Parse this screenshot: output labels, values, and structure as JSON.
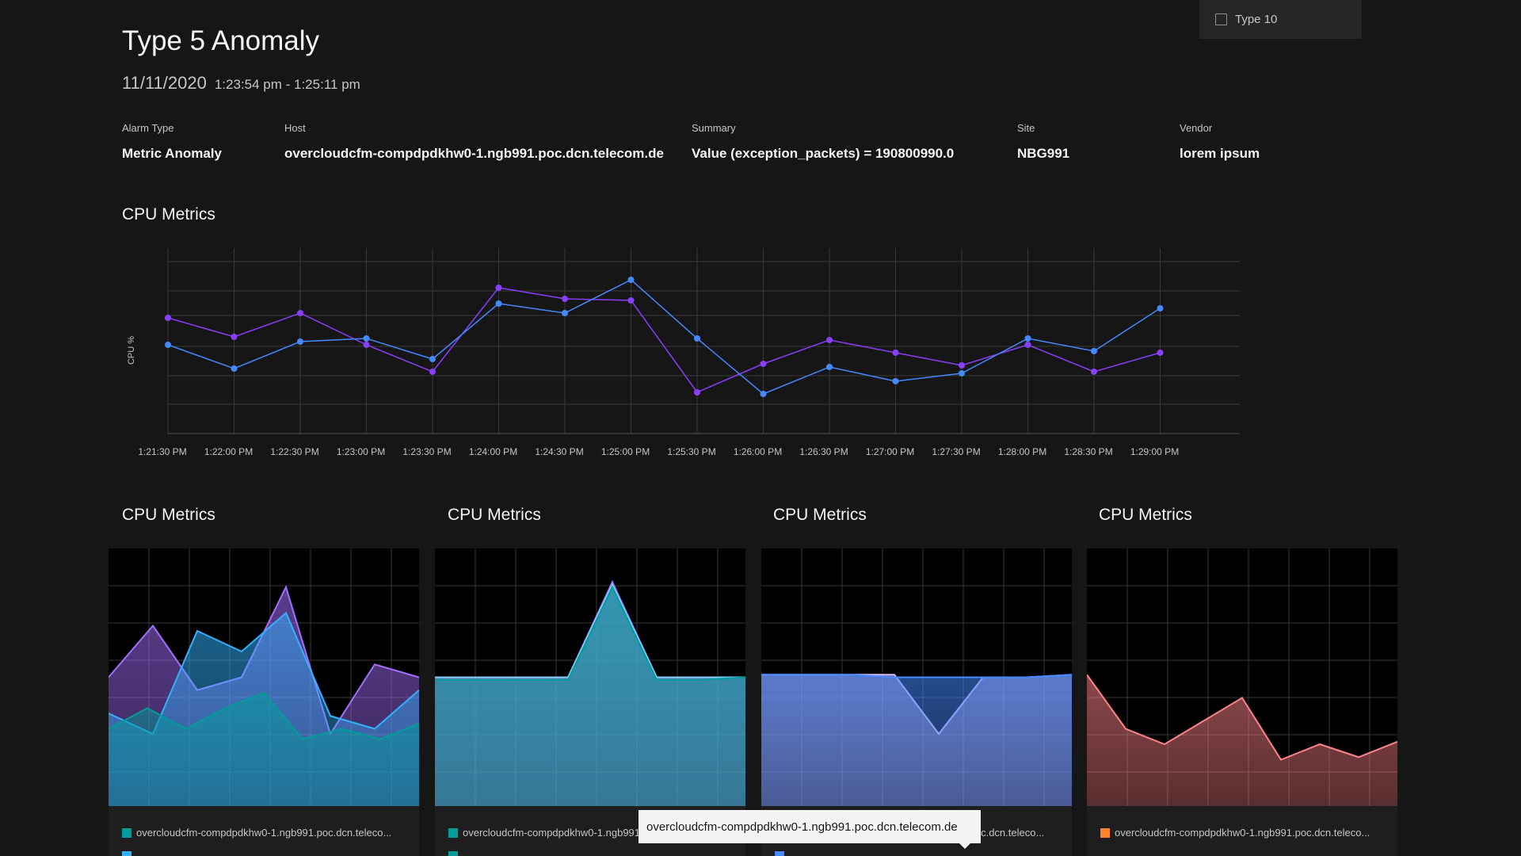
{
  "header": {
    "title": "Type 5 Anomaly",
    "date": "11/11/2020",
    "time_range": "1:23:54 pm - 1:25:11 pm"
  },
  "filter": {
    "label": "Type 10"
  },
  "meta": [
    {
      "label": "Alarm Type",
      "value": "Metric Anomaly"
    },
    {
      "label": "Host",
      "value": "overcloudcfm-compdpdkhw0-1.ngb991.poc.dcn.telecom.de"
    },
    {
      "label": "Summary",
      "value": "Value (exception_packets) = 190800990.0"
    },
    {
      "label": "Site",
      "value": "NBG991"
    },
    {
      "label": "Vendor",
      "value": "lorem ipsum"
    }
  ],
  "main_chart_title": "CPU Metrics",
  "chart_data": [
    {
      "type": "line",
      "ylabel": "CPU %",
      "x": [
        "1:21:30 PM",
        "1:22:00 PM",
        "1:22:30 PM",
        "1:23:00 PM",
        "1:23:30 PM",
        "1:24:00 PM",
        "1:24:30 PM",
        "1:25:00 PM",
        "1:25:30 PM",
        "1:26:00 PM",
        "1:26:30 PM",
        "1:27:00 PM",
        "1:27:30 PM",
        "1:28:00 PM",
        "1:28:30 PM",
        "1:29:00 PM"
      ],
      "grid": true,
      "series": [
        {
          "color": "#8a3ffc",
          "values": [
            68,
            56,
            71,
            51,
            34,
            87,
            80,
            79,
            21,
            39,
            54,
            46,
            38,
            51,
            34,
            46
          ]
        },
        {
          "color": "#4589ff",
          "values": [
            51,
            36,
            53,
            55,
            42,
            77,
            71,
            92,
            55,
            20,
            37,
            28,
            33,
            55,
            47,
            74
          ]
        }
      ]
    },
    {
      "type": "area",
      "title": "CPU Metrics",
      "series": [
        {
          "color": "#a56eff",
          "values": [
            50,
            70,
            45,
            50,
            85,
            28,
            55,
            50
          ]
        },
        {
          "color": "#33b1ff",
          "values": [
            36,
            28,
            68,
            60,
            75,
            35,
            30,
            45
          ]
        },
        {
          "color": "#009d9a",
          "values": [
            30,
            38,
            30,
            38,
            44,
            26,
            30,
            26,
            32
          ]
        }
      ],
      "legend": [
        "overcloudcfm-compdpdkhw0-1.ngb991.poc.dcn.teleco..."
      ]
    },
    {
      "type": "area",
      "title": "CPU Metrics",
      "series": [
        {
          "color": "#a56eff",
          "values": [
            50,
            50,
            50,
            50,
            87,
            50,
            50,
            50
          ]
        },
        {
          "color": "#82cfff",
          "values": [
            50,
            50,
            50,
            50,
            86,
            50,
            50,
            50
          ]
        },
        {
          "color": "#009d9a",
          "values": [
            49,
            49,
            49,
            49,
            85,
            49,
            49,
            50
          ]
        }
      ],
      "legend": [
        "overcloudcfm-compdpdkhw0-1.ngb991.poc.dcn.teleco..."
      ]
    },
    {
      "type": "area",
      "title": "CPU Metrics",
      "series": [
        {
          "color": "#d4bbff",
          "values": [
            51,
            51,
            51,
            51,
            28,
            50,
            50,
            51
          ]
        },
        {
          "color": "#4589ff",
          "values": [
            51,
            51,
            51,
            50,
            50,
            50,
            50,
            51
          ]
        }
      ],
      "legend": [
        "overcloudcfm-compdpdkhw0-1.ngb991.poc.dcn.teleco..."
      ]
    },
    {
      "type": "area",
      "title": "CPU Metrics",
      "series": [
        {
          "color": "#ff8389",
          "values": [
            51,
            30,
            24,
            33,
            42,
            18,
            24,
            19,
            25
          ]
        }
      ],
      "legend": [
        "overcloudcfm-compdpdkhw0-1.ngb991.poc.dcn.teleco..."
      ]
    }
  ],
  "tooltip": "overcloudcfm-compdpdkhw0-1.ngb991.poc.dcn.telecom.de",
  "legend_colors": {
    "teal": "#009d9a",
    "cyan": "#33b1ff",
    "orange": "#ff832b"
  }
}
